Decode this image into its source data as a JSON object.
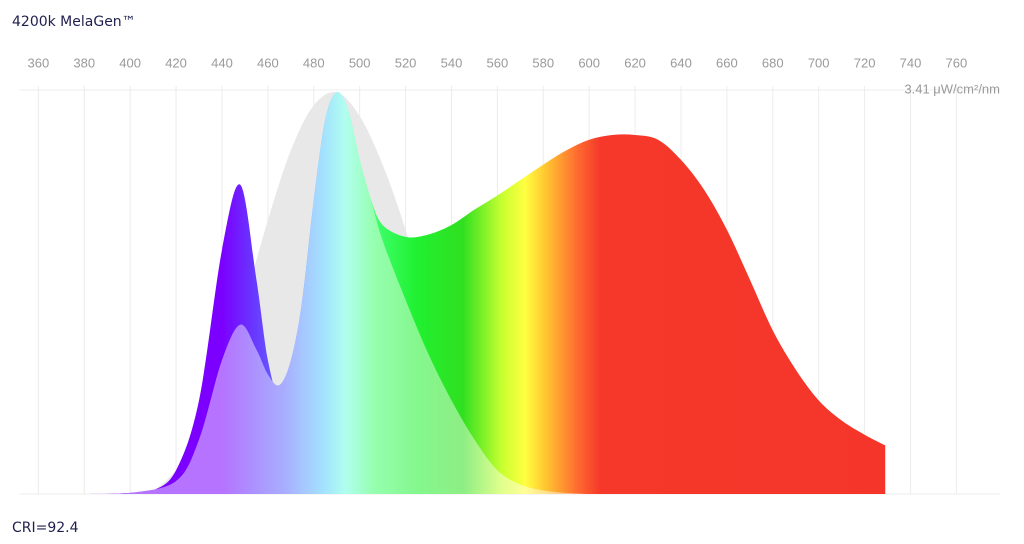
{
  "title": "4200k MelaGen™",
  "footer": "CRI=92.4",
  "chart_data": {
    "type": "area",
    "xlim": [
      352,
      779
    ],
    "xticks": [
      360,
      380,
      400,
      420,
      440,
      460,
      480,
      500,
      520,
      540,
      560,
      580,
      600,
      620,
      640,
      660,
      680,
      700,
      720,
      740,
      760
    ],
    "ylim": [
      0,
      3.41
    ],
    "yticks": [
      {
        "value": 3.41,
        "label": "3.41 μW/cm²/nm"
      }
    ],
    "grid": true,
    "series": [
      {
        "color": "#e8e8e8",
        "x": [
          400,
          410,
          420,
          430,
          440,
          450,
          460,
          470,
          480,
          490,
          500,
          510,
          520,
          530,
          540,
          550,
          560,
          570,
          580
        ],
        "values": [
          0,
          0.03,
          0.2,
          0.46,
          0.96,
          1.63,
          2.31,
          2.9,
          3.28,
          3.39,
          3.19,
          2.78,
          2.23,
          1.55,
          0.96,
          0.54,
          0.24,
          0.08,
          0
        ]
      },
      {
        "color": "spectrum",
        "x": [
          380,
          390,
          400,
          410,
          420,
          430,
          440,
          448,
          455,
          460,
          465,
          470,
          475,
          480,
          485,
          490,
          495,
          500,
          505,
          510,
          520,
          530,
          540,
          550,
          560,
          570,
          580,
          590,
          600,
          610,
          620,
          630,
          640,
          650,
          660,
          670,
          680,
          690,
          700,
          710,
          720,
          729
        ],
        "values": [
          0,
          0,
          0.01,
          0.03,
          0.2,
          0.79,
          2.06,
          2.61,
          1.81,
          1.13,
          0.82,
          1.05,
          1.64,
          2.48,
          3.16,
          3.39,
          3.24,
          2.82,
          2.48,
          2.27,
          2.17,
          2.19,
          2.27,
          2.4,
          2.52,
          2.65,
          2.78,
          2.9,
          2.99,
          3.03,
          3.03,
          2.99,
          2.82,
          2.57,
          2.23,
          1.81,
          1.38,
          1.05,
          0.79,
          0.62,
          0.5,
          0.41
        ]
      },
      {
        "color": "spectrum-light",
        "x": [
          380,
          400,
          420,
          430,
          440,
          448,
          455,
          460,
          465,
          470,
          475,
          480,
          485,
          490,
          495,
          500,
          505,
          510,
          520,
          530,
          540,
          550,
          560,
          570,
          580,
          590,
          600
        ],
        "values": [
          0,
          0.01,
          0.11,
          0.46,
          1.13,
          1.43,
          1.22,
          1.01,
          0.92,
          1.13,
          1.64,
          2.48,
          3.16,
          3.39,
          3.24,
          2.82,
          2.48,
          2.14,
          1.64,
          1.18,
          0.79,
          0.46,
          0.2,
          0.08,
          0.03,
          0.01,
          0
        ]
      }
    ]
  }
}
